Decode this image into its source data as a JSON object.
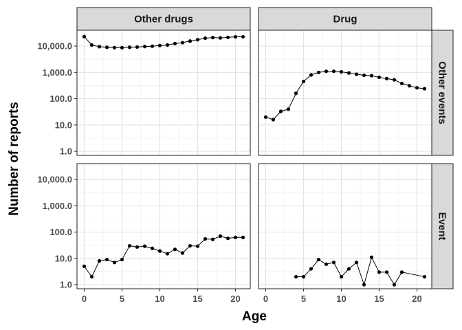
{
  "chart_data": {
    "type": "line",
    "xlabel": "Age",
    "ylabel": "Number of reports",
    "x_scale": "linear",
    "y_scale": "log10",
    "xlim": [
      0,
      21
    ],
    "ylim": [
      0.7,
      40000
    ],
    "x_ticks": [
      0,
      5,
      10,
      15,
      20
    ],
    "x_tick_labels": [
      "0",
      "5",
      "10",
      "15",
      "20"
    ],
    "y_ticks": [
      1,
      10,
      100,
      1000,
      10000
    ],
    "y_tick_labels": [
      "1.0",
      "10.0",
      "100.0",
      "1,000.0",
      "10,000.0"
    ],
    "grid": true,
    "column_facets": [
      "Other drugs",
      "Drug"
    ],
    "row_facets": [
      "Other events",
      "Event"
    ],
    "panels": [
      {
        "col": "Other drugs",
        "row": "Other events",
        "x": [
          0,
          1,
          2,
          3,
          4,
          5,
          6,
          7,
          8,
          9,
          10,
          11,
          12,
          13,
          14,
          15,
          16,
          17,
          18,
          19,
          20,
          21
        ],
        "y": [
          23000,
          11000,
          9500,
          9000,
          8700,
          8700,
          9000,
          9200,
          9600,
          9900,
          10500,
          11000,
          12500,
          13500,
          15500,
          17500,
          20000,
          21000,
          20500,
          21500,
          22500,
          22500
        ]
      },
      {
        "col": "Drug",
        "row": "Other events",
        "x": [
          0,
          1,
          2,
          3,
          4,
          5,
          6,
          7,
          8,
          9,
          10,
          11,
          12,
          13,
          14,
          15,
          16,
          17,
          18,
          19,
          20,
          21
        ],
        "y": [
          20,
          16,
          33,
          40,
          160,
          450,
          800,
          1000,
          1100,
          1100,
          1050,
          950,
          850,
          780,
          750,
          650,
          580,
          520,
          380,
          310,
          260,
          240
        ]
      },
      {
        "col": "Other drugs",
        "row": "Event",
        "x": [
          0,
          1,
          2,
          3,
          4,
          5,
          6,
          7,
          8,
          9,
          10,
          11,
          12,
          13,
          14,
          15,
          16,
          17,
          18,
          19,
          20,
          21
        ],
        "y": [
          5,
          2,
          8,
          9,
          7,
          9,
          30,
          27,
          29,
          24,
          19,
          15,
          22,
          16,
          30,
          29,
          55,
          53,
          70,
          58,
          63,
          63
        ]
      },
      {
        "col": "Drug",
        "row": "Event",
        "x": [
          4,
          5,
          6,
          7,
          8,
          9,
          10,
          11,
          12,
          13,
          14,
          15,
          16,
          17,
          18,
          21
        ],
        "y": [
          2,
          2,
          4,
          9,
          6,
          7,
          2,
          4,
          7,
          1,
          11,
          3,
          3,
          1,
          3,
          2
        ]
      }
    ]
  }
}
